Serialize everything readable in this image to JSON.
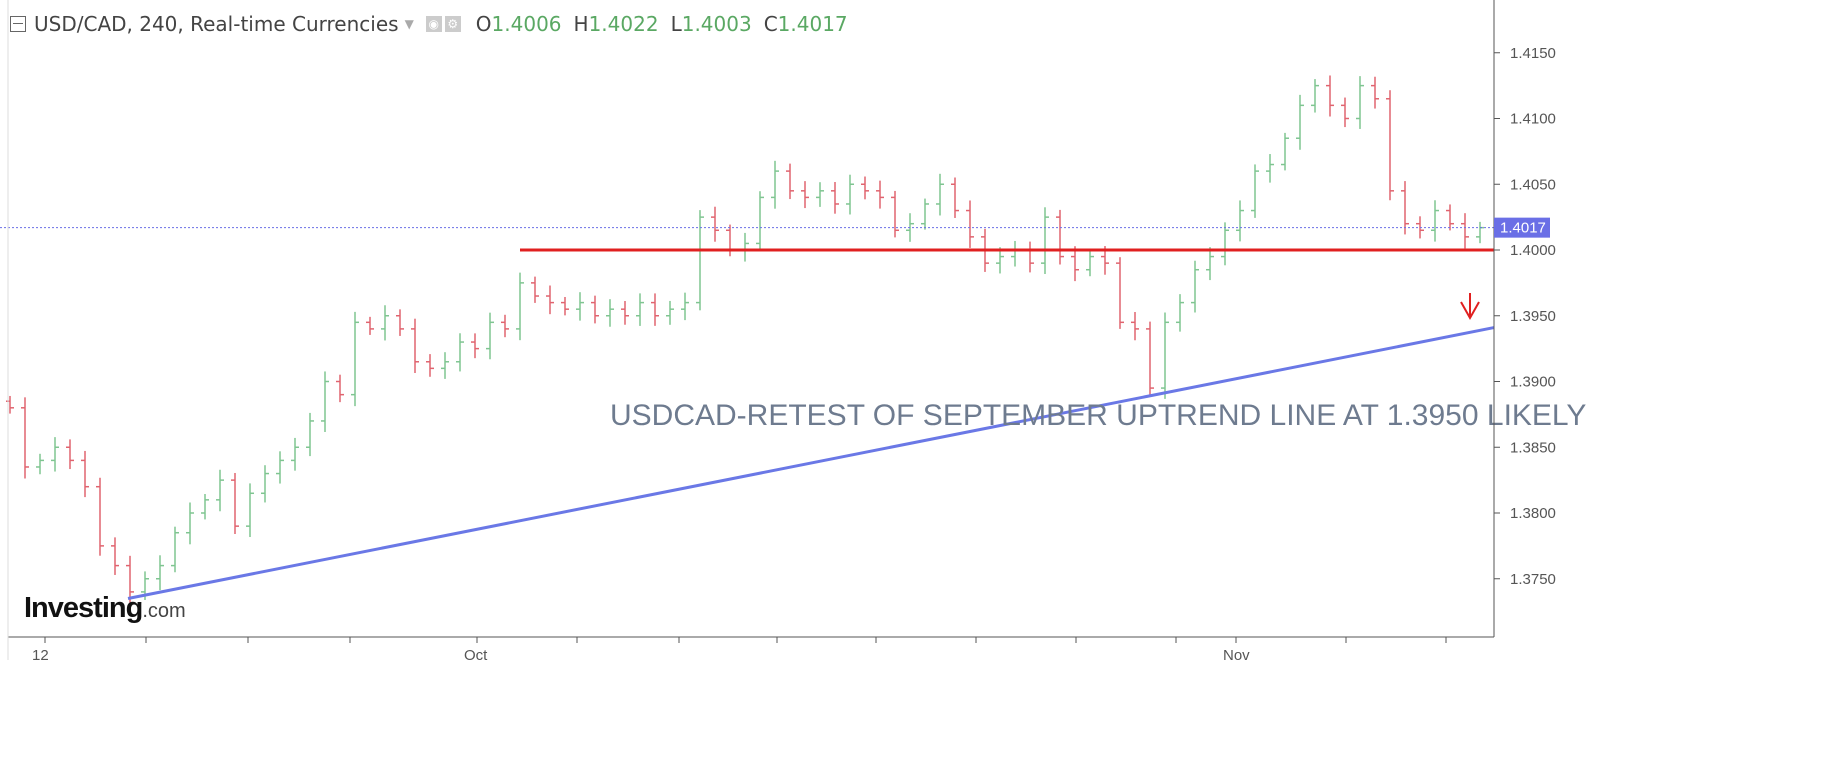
{
  "header": {
    "title": "USD/CAD, 240, Real-time Currencies",
    "ohlc": [
      {
        "key": "O",
        "value": "1.4006"
      },
      {
        "key": "H",
        "value": "1.4022"
      },
      {
        "key": "L",
        "value": "1.4003"
      },
      {
        "key": "C",
        "value": "1.4017"
      }
    ]
  },
  "logo": "Investing.com",
  "chart_data": {
    "type": "ohlc",
    "instrument": "USD/CAD",
    "interval": "240",
    "ylim": [
      1.37,
      1.419
    ],
    "y_ticks": [
      "1.4150",
      "1.4100",
      "1.4050",
      "1.4000",
      "1.3950",
      "1.3900",
      "1.3850",
      "1.3800",
      "1.3750"
    ],
    "x_tick_labels": [
      "12",
      "Oct",
      "Nov"
    ],
    "last_price": "1.4017",
    "colors": {
      "up": "#7fc591",
      "down": "#e0646f",
      "support": "#e02020",
      "trendline": "#6a78e6",
      "price_label": "#6a6fe6"
    },
    "closes": [
      1.388,
      1.3835,
      1.384,
      1.385,
      1.384,
      1.382,
      1.3775,
      1.376,
      1.374,
      1.375,
      1.376,
      1.3785,
      1.38,
      1.381,
      1.3825,
      1.379,
      1.3815,
      1.383,
      1.384,
      1.385,
      1.387,
      1.39,
      1.389,
      1.3945,
      1.394,
      1.395,
      1.394,
      1.3915,
      1.391,
      1.3915,
      1.393,
      1.3925,
      1.3945,
      1.394,
      1.3975,
      1.3965,
      1.396,
      1.3955,
      1.396,
      1.395,
      1.3955,
      1.395,
      1.396,
      1.395,
      1.3955,
      1.396,
      1.4025,
      1.4015,
      1.4,
      1.4005,
      1.404,
      1.406,
      1.4045,
      1.404,
      1.4045,
      1.4035,
      1.405,
      1.4045,
      1.404,
      1.4015,
      1.402,
      1.4035,
      1.405,
      1.403,
      1.401,
      1.399,
      1.3995,
      1.4,
      1.399,
      1.4025,
      1.3995,
      1.3985,
      1.3995,
      1.399,
      1.3945,
      1.394,
      1.3895,
      1.3945,
      1.396,
      1.3985,
      1.3995,
      1.4015,
      1.403,
      1.406,
      1.4065,
      1.4085,
      1.411,
      1.4125,
      1.411,
      1.41,
      1.4125,
      1.4115,
      1.4045,
      1.402,
      1.4015,
      1.403,
      1.402,
      1.401,
      1.4017
    ],
    "support_level": 1.4,
    "trendline": {
      "start": 1.3735,
      "end": 1.3941
    },
    "annotation": "USDCAD-RETEST OF SEPTEMBER UPTREND LINE AT 1.3950 LIKELY"
  }
}
